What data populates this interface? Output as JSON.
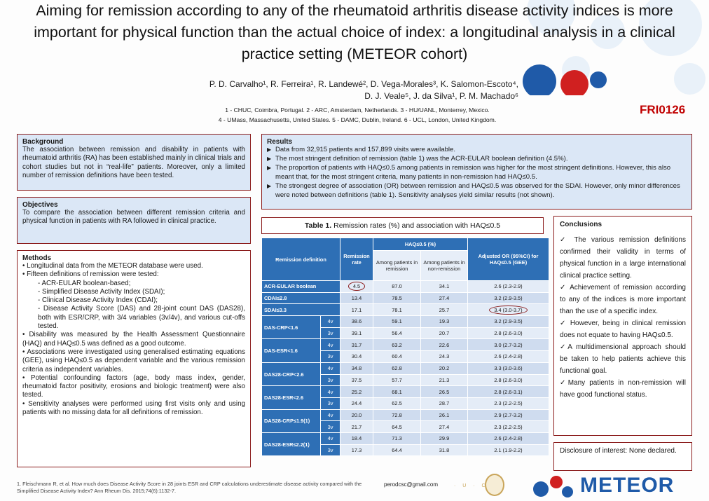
{
  "header": {
    "title": "Aiming for remission according to any of the rheumatoid arthritis disease activity indices is more important for physical function than the actual choice of index: a longitudinal analysis in a clinical practice setting (METEOR cohort)",
    "authors_line1": "P. D. Carvalho¹, R. Ferreira¹, R. Landewé², D. Vega-Morales³, K. Salomon-Escoto⁴,",
    "authors_line2": "D. J. Veale⁵, J. da Silva¹, P. M. Machado⁶",
    "affil_line1": "1 - CHUC, Coimbra, Portugal. 2 - ARC, Amsterdam, Netherlands. 3 - HU/UANL, Monterrey, Mexico.",
    "affil_line2": "4 - UMass, Massachusetts, United States. 5 - DAMC, Dublin, Ireland. 6 - UCL, London, United Kingdom.",
    "code": "FRI0126"
  },
  "background": {
    "heading": "Background",
    "text": "The association between remission and disability in patients with rheumatoid arthritis (RA) has been established mainly in clinical trials and cohort studies but not in “real-life” patients. Moreover, only a limited number of remission definitions have been tested."
  },
  "objectives": {
    "heading": "Objectives",
    "text": "To compare the association between different remission criteria and physical function in patients with RA followed in clinical practice."
  },
  "methods": {
    "heading": "Methods",
    "lines": [
      {
        "text": "• Longitudinal data from the METEOR database were used.",
        "sub": false
      },
      {
        "text": "• Fifteen definitions of remission were tested:",
        "sub": false
      },
      {
        "text": "- ACR-EULAR boolean-based;",
        "sub": true
      },
      {
        "text": "- Simplified Disease Activity Index (SDAI);",
        "sub": true
      },
      {
        "text": "- Clinical Disease Activity Index (CDAI);",
        "sub": true
      },
      {
        "text": "- Disease Activity Score (DAS) and 28-joint count DAS (DAS28), both with ESR/CRP, with 3/4 variables (3v/4v), and various cut-offs tested.",
        "sub": true
      },
      {
        "text": "• Disability was measured by the Health Assessment Questionnaire (HAQ) and HAQ≤0.5 was defined as a good outcome.",
        "sub": false
      },
      {
        "text": "• Associations were investigated using generalised estimating equations (GEE), using HAQ≤0.5 as dependent variable and the various remission criteria as independent variables.",
        "sub": false
      },
      {
        "text": "• Potential confounding factors (age, body mass index, gender, rheumatoid factor positivity, erosions and biologic treatment) were also tested.",
        "sub": false
      },
      {
        "text": "• Sensitivity analyses were performed using first visits only and using patients with no missing data for all definitions of remission.",
        "sub": false
      }
    ]
  },
  "results": {
    "heading": "Results",
    "lines": [
      "Data from 32,915 patients and 157,899 visits were available.",
      "The most stringent definition of remission (table 1) was the ACR-EULAR boolean definition (4.5%).",
      "The proportion of patients with HAQ≤0.5 among patients in remission was higher for the most stringent definitions. However, this also meant that, for the most stringent criteria, many patients in non-remission had HAQ≤0.5.",
      "The strongest degree of association (OR) between remission and HAQ≤0.5 was observed for the SDAI. However, only minor differences were noted between definitions (table 1). Sensitivity analyses yield similar results (not shown)."
    ]
  },
  "table": {
    "title": "Table 1. Remission rates (%) and association with HAQ≤0.5",
    "h_def": "Remission definition",
    "h_rate": "Remission rate",
    "h_haq": "HAQ≤0.5 (%)",
    "h_among_rem": "Among patients in remission",
    "h_among_non": "Among patients in non-remission",
    "h_or": "Adjusted OR (95%CI) for HAQ≤0.5 (GEE)",
    "rows": [
      {
        "label": "ACR-EULAR boolean",
        "var": "",
        "rate": "4.5",
        "rem": "87.0",
        "non": "34.1",
        "or": "2.6 (2.3-2.9)"
      },
      {
        "label": "CDAI≤2.8",
        "var": "",
        "rate": "13.4",
        "rem": "78.5",
        "non": "27.4",
        "or": "3.2 (2.9-3.5)"
      },
      {
        "label": "SDAI≤3.3",
        "var": "",
        "rate": "17.1",
        "rem": "78.1",
        "non": "25.7",
        "or": "3.4 (3.0-3.7)"
      },
      {
        "label": "DAS-CRP<1.6",
        "var": "4v",
        "rate": "38.6",
        "rem": "59.1",
        "non": "19.3",
        "or": "3.2 (2.9-3.5)"
      },
      {
        "label": "",
        "var": "3v",
        "rate": "39.1",
        "rem": "56.4",
        "non": "20.7",
        "or": "2.8 (2.6-3.0)"
      },
      {
        "label": "DAS-ESR<1.6",
        "var": "4v",
        "rate": "31.7",
        "rem": "63.2",
        "non": "22.6",
        "or": "3.0 (2.7-3.2)"
      },
      {
        "label": "",
        "var": "3v",
        "rate": "30.4",
        "rem": "60.4",
        "non": "24.3",
        "or": "2.6 (2.4-2.8)"
      },
      {
        "label": "DAS28-CRP<2.6",
        "var": "4v",
        "rate": "34.8",
        "rem": "62.8",
        "non": "20.2",
        "or": "3.3 (3.0-3.6)"
      },
      {
        "label": "",
        "var": "3v",
        "rate": "37.5",
        "rem": "57.7",
        "non": "21.3",
        "or": "2.8 (2.6-3.0)"
      },
      {
        "label": "DAS28-ESR<2.6",
        "var": "4v",
        "rate": "25.2",
        "rem": "68.1",
        "non": "26.5",
        "or": "2.8 (2.6-3.1)"
      },
      {
        "label": "",
        "var": "3v",
        "rate": "24.4",
        "rem": "62.5",
        "non": "28.7",
        "or": "2.3 (2.2-2.5)"
      },
      {
        "label": "DAS28-CRP≤1.9(1)",
        "var": "4v",
        "rate": "20.0",
        "rem": "72.8",
        "non": "26.1",
        "or": "2.9 (2.7-3.2)"
      },
      {
        "label": "",
        "var": "3v",
        "rate": "21.7",
        "rem": "64.5",
        "non": "27.4",
        "or": "2.3 (2.2-2.5)"
      },
      {
        "label": "DAS28-ESR≤2.2(1)",
        "var": "4v",
        "rate": "18.4",
        "rem": "71.3",
        "non": "29.9",
        "or": "2.6 (2.4-2.8)"
      },
      {
        "label": "",
        "var": "3v",
        "rate": "17.3",
        "rem": "64.4",
        "non": "31.8",
        "or": "2.1 (1.9-2.2)"
      }
    ]
  },
  "conclusions": {
    "heading": "Conclusions",
    "lines": [
      "✓ The various remission definitions confirmed their validity in terms of physical function in a large international clinical practice setting.",
      "✓ Achievement of remission according to any of the indices is more important than the use of a specific index.",
      "✓ However, being in clinical remission does not equate to having HAQ≤0.5.",
      "✓A multidimensional approach should be taken to help patients achieve this functional goal.",
      "✓Many patients in non-remission will have good functional status."
    ]
  },
  "disclosure": {
    "text": "Disclosure of interest: None declared."
  },
  "footer": {
    "reference": "1. Fleischmann R, et al. How much does Disease Activity Score in 28 joints ESR and CRP calculations underestimate disease activity compared with the Simplified Disease Activity Index? Ann Rheum Dis. 2015;74(6):1132-7.",
    "email": "perodcsc@gmail.com",
    "logo_text": "METEOR"
  },
  "colors": {
    "accent": "#8b1c1c",
    "table_header": "#2e6fb5",
    "logo_blue": "#1f5aa8",
    "code_red": "#c00000"
  }
}
